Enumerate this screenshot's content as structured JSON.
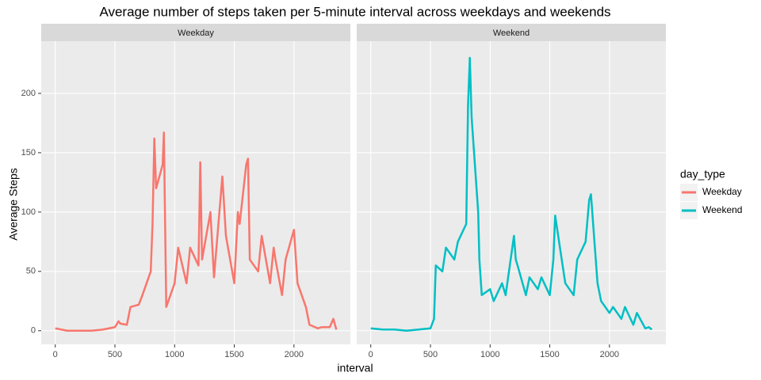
{
  "chart_data": {
    "type": "line",
    "title": "Average number of steps taken per 5-minute interval across weekdays and weekends",
    "x_label": "interval",
    "y_label": "Average Steps",
    "legend_title": "day_type",
    "x": [
      0,
      100,
      200,
      300,
      400,
      500,
      530,
      545,
      600,
      630,
      700,
      730,
      800,
      815,
      830,
      845,
      900,
      910,
      930,
      1000,
      1030,
      1100,
      1130,
      1200,
      1215,
      1230,
      1300,
      1330,
      1400,
      1430,
      1500,
      1530,
      1545,
      1600,
      1615,
      1630,
      1700,
      1730,
      1800,
      1830,
      1845,
      1900,
      1930,
      2000,
      2030,
      2100,
      2130,
      2200,
      2230,
      2300,
      2330,
      2355
    ],
    "series": [
      {
        "name": "Weekday",
        "color": "#F8766D",
        "values": [
          2,
          0,
          0,
          0,
          1,
          3,
          8,
          6,
          5,
          20,
          22,
          30,
          50,
          90,
          162,
          120,
          140,
          167,
          20,
          40,
          70,
          40,
          70,
          55,
          142,
          60,
          100,
          45,
          130,
          80,
          40,
          100,
          90,
          140,
          145,
          60,
          50,
          80,
          40,
          70,
          60,
          30,
          60,
          85,
          40,
          20,
          5,
          2,
          3,
          3,
          10,
          1
        ]
      },
      {
        "name": "Weekend",
        "color": "#00BFC4",
        "values": [
          2,
          1,
          1,
          0,
          1,
          2,
          10,
          55,
          50,
          70,
          60,
          75,
          90,
          190,
          230,
          180,
          100,
          60,
          30,
          35,
          25,
          40,
          30,
          80,
          60,
          55,
          30,
          45,
          35,
          45,
          30,
          60,
          97,
          60,
          50,
          40,
          30,
          60,
          75,
          110,
          115,
          40,
          25,
          15,
          20,
          10,
          20,
          5,
          15,
          2,
          3,
          1
        ]
      }
    ],
    "xlim": [
      -117.75,
      2472.75
    ],
    "xticks": [
      0,
      500,
      1000,
      1500,
      2000
    ],
    "ylim": [
      -11.5,
      244
    ],
    "yticks": [
      0,
      50,
      100,
      150,
      200
    ],
    "grid": true,
    "legend_position": "right"
  }
}
